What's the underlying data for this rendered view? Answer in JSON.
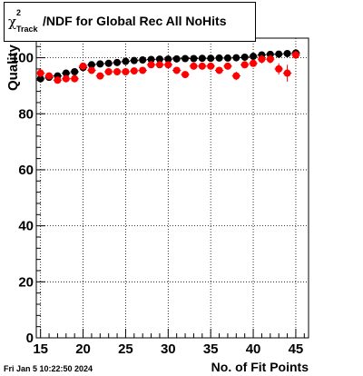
{
  "header": {
    "chi_symbol": "χ",
    "sup_text": "2",
    "sub_text": "Track",
    "title_rest": "/NDF for Global Rec All NoHits"
  },
  "footer": {
    "timestamp": "Fri Jan  5 10:22:50 2024"
  },
  "colors": {
    "series_black": "#000000",
    "series_red": "#ff0000",
    "grid": "#000000"
  },
  "chart_data": {
    "type": "scatter",
    "xlabel": "No. of Fit Points",
    "ylabel": "Quality",
    "xlim": [
      14.5,
      46.5
    ],
    "ylim": [
      0,
      107
    ],
    "x_ticks": [
      15,
      20,
      25,
      30,
      35,
      40,
      45
    ],
    "y_ticks": [
      0,
      20,
      40,
      60,
      80,
      100
    ],
    "grid": true,
    "series": [
      {
        "color": "#000000",
        "x": [
          15,
          16,
          17,
          18,
          19,
          20,
          21,
          22,
          23,
          24,
          25,
          26,
          27,
          28,
          29,
          30,
          31,
          32,
          33,
          34,
          35,
          36,
          37,
          38,
          39,
          40,
          41,
          42,
          43,
          44,
          45
        ],
        "y": [
          92.5,
          93.0,
          93.5,
          94.5,
          95.0,
          96.5,
          97.5,
          97.8,
          98.0,
          98.3,
          98.7,
          99.0,
          99.2,
          99.4,
          99.5,
          99.5,
          99.6,
          99.7,
          99.7,
          99.8,
          99.8,
          99.9,
          99.9,
          100.0,
          100.2,
          100.5,
          101.0,
          101.2,
          101.3,
          101.5,
          101.7
        ],
        "yerr": [
          1.0,
          0.8,
          0.6,
          0.5,
          0.5,
          0.4,
          0.4,
          0.3,
          0.3,
          0.3,
          0.3,
          0.3,
          0.3,
          0.3,
          0.3,
          0.3,
          0.3,
          0.3,
          0.3,
          0.3,
          0.3,
          0.3,
          0.3,
          0.3,
          0.3,
          0.3,
          0.3,
          0.3,
          0.3,
          0.3,
          0.3
        ]
      },
      {
        "color": "#ff0000",
        "x": [
          15,
          16,
          17,
          18,
          19,
          20,
          21,
          22,
          23,
          24,
          25,
          26,
          27,
          28,
          29,
          30,
          31,
          32,
          33,
          34,
          35,
          36,
          37,
          38,
          39,
          40,
          41,
          42,
          43,
          44,
          45
        ],
        "y": [
          94.5,
          93.5,
          92.0,
          92.5,
          92.5,
          97.0,
          95.5,
          93.5,
          95.0,
          95.0,
          95.0,
          95.3,
          95.5,
          97.5,
          97.5,
          97.5,
          95.5,
          94.0,
          97.0,
          97.0,
          97.0,
          95.5,
          97.0,
          93.5,
          97.5,
          98.0,
          99.5,
          99.5,
          96.0,
          94.5,
          101.0
        ],
        "yerr": [
          1.5,
          1.2,
          1.2,
          1.0,
          1.0,
          1.0,
          1.2,
          1.2,
          1.0,
          1.0,
          1.0,
          1.0,
          1.0,
          1.0,
          1.0,
          1.0,
          1.2,
          1.2,
          1.0,
          1.0,
          1.0,
          1.2,
          1.2,
          1.5,
          1.2,
          1.2,
          1.5,
          1.5,
          2.0,
          3.0,
          1.5
        ]
      }
    ]
  }
}
